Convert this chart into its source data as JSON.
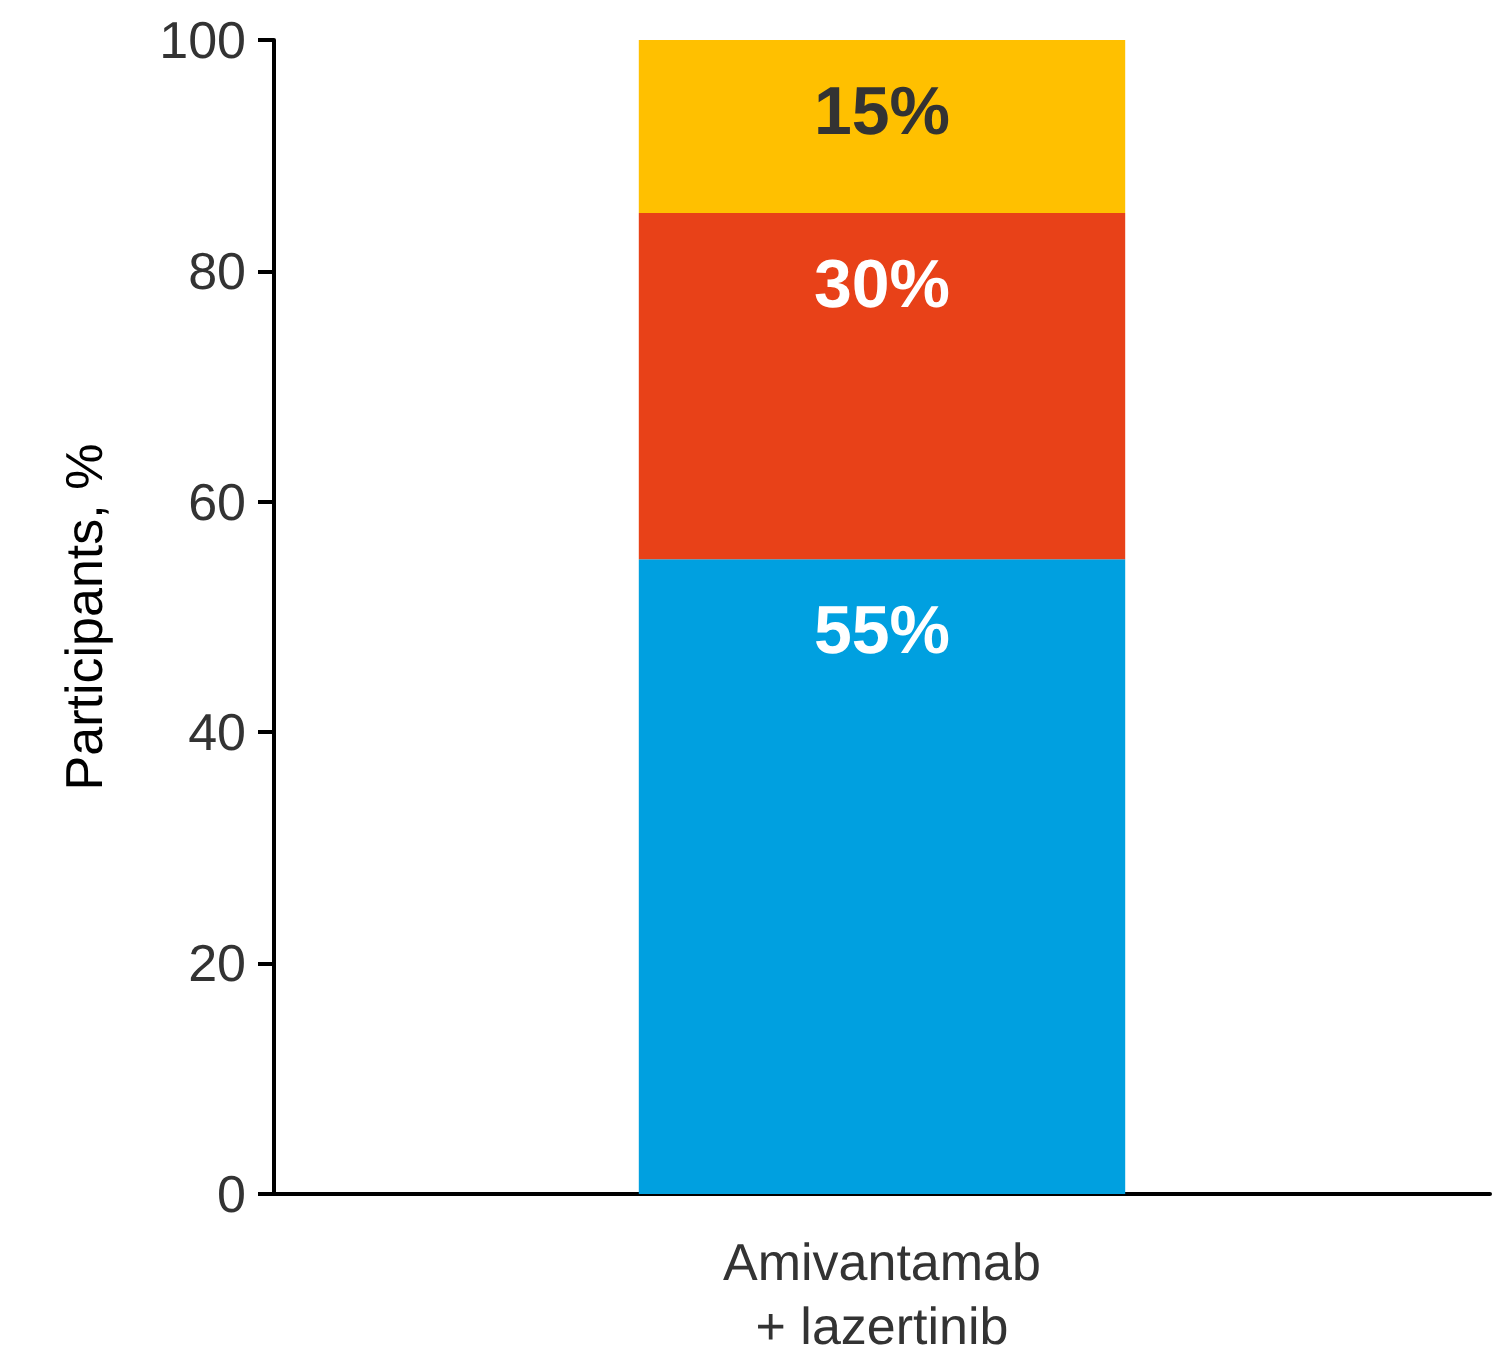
{
  "chart_data": {
    "type": "bar",
    "stacked": true,
    "ylabel": "Participants, %",
    "categories": [
      "Amivantamab\n+ lazertinib"
    ],
    "series": [
      {
        "color": "#00a0e0",
        "values": [
          55
        ],
        "value_labels": [
          "55%"
        ]
      },
      {
        "color": "#e84118",
        "values": [
          30
        ],
        "value_labels": [
          "30%"
        ]
      },
      {
        "color": "#ffc000",
        "values": [
          15
        ],
        "value_labels": [
          "15%"
        ]
      }
    ],
    "ylim": [
      0,
      100
    ],
    "yticks": [
      0,
      20,
      40,
      60,
      80,
      100
    ],
    "grid": false
  }
}
